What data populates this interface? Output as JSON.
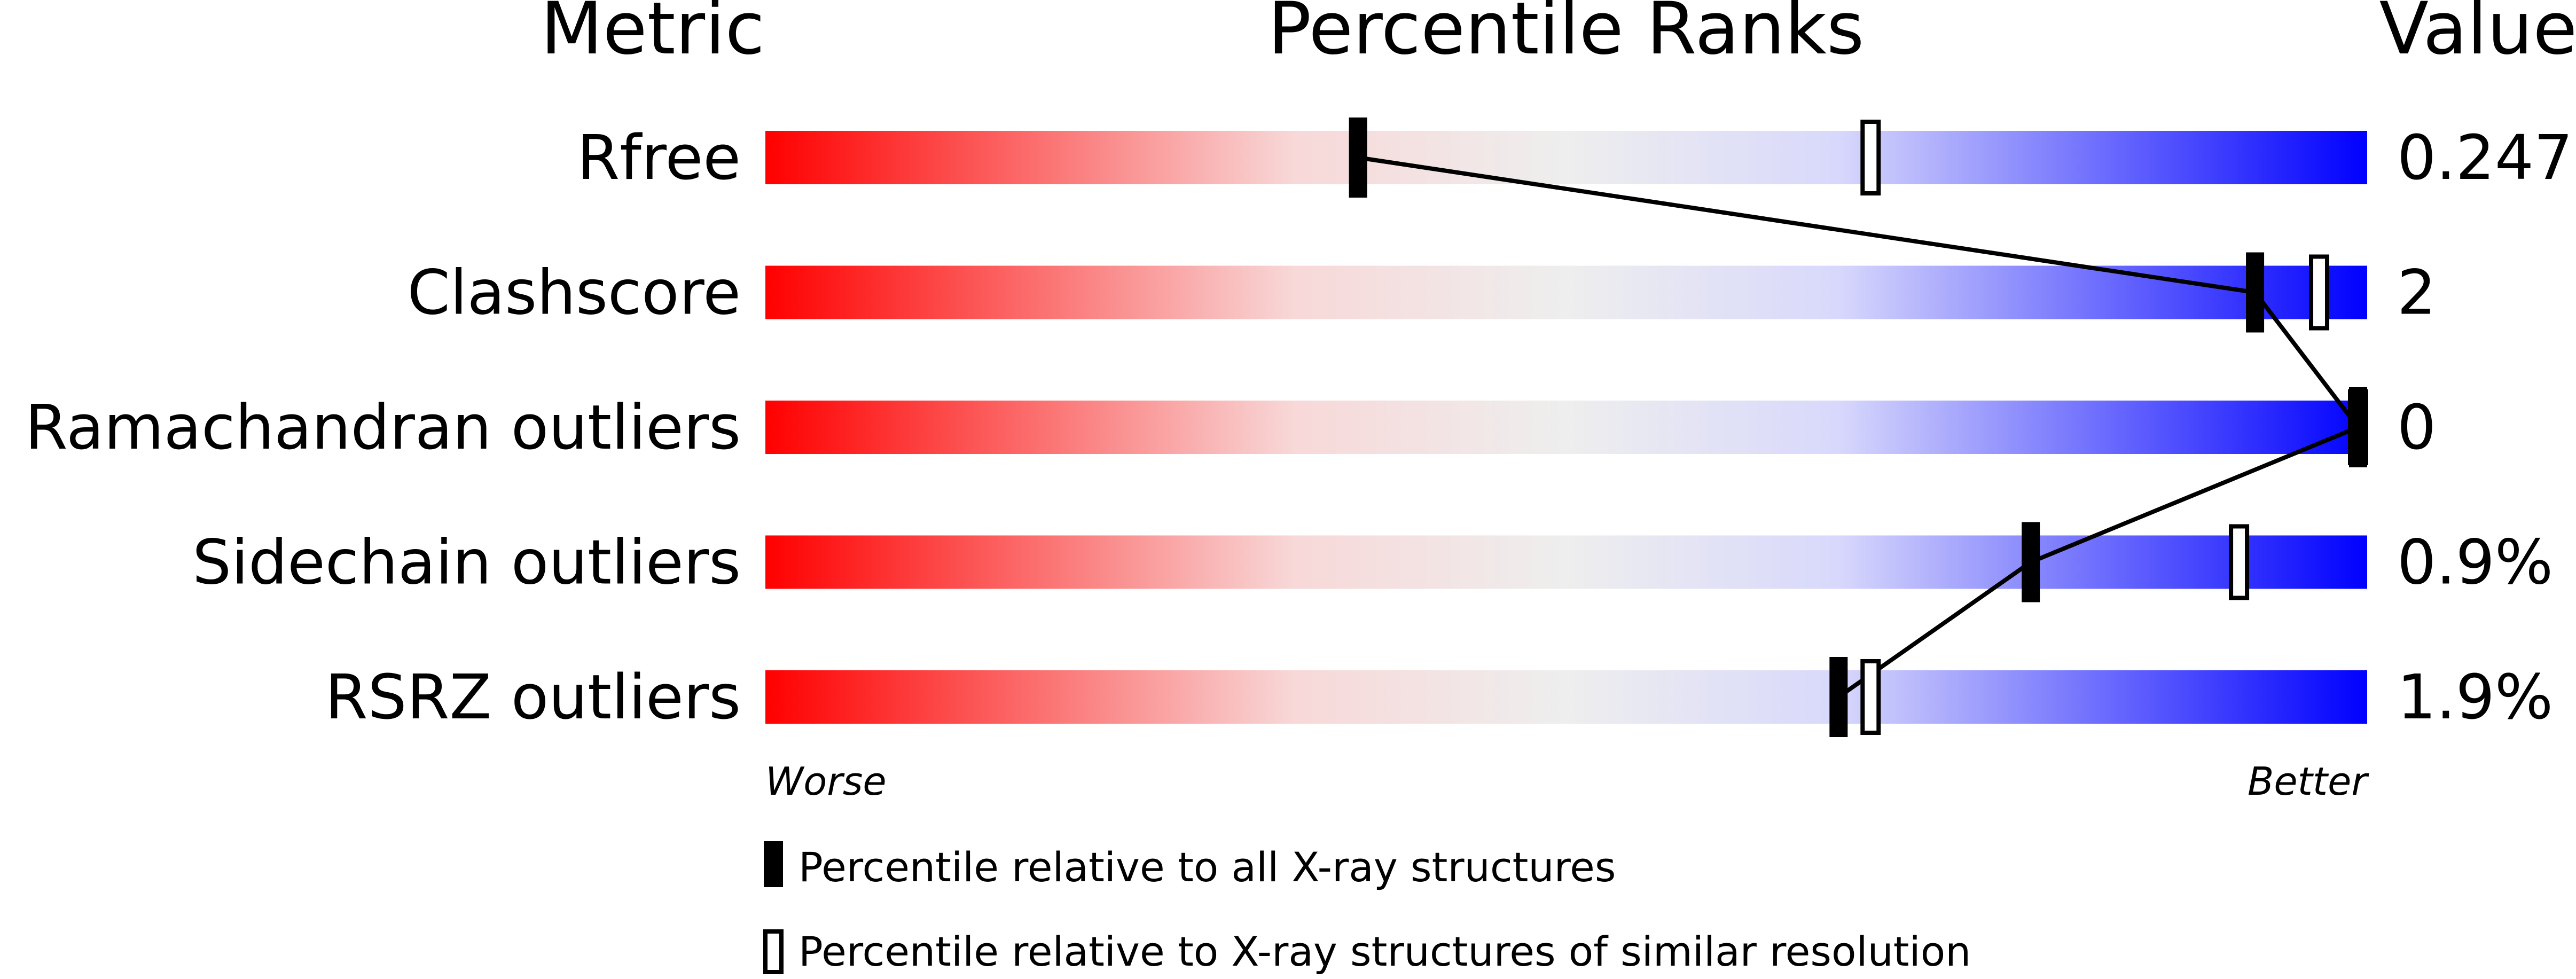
{
  "chart_data": {
    "type": "percentile-bar",
    "headers": {
      "metric": "Metric",
      "ranks": "Percentile Ranks",
      "value": "Value"
    },
    "xlim": [
      0,
      100
    ],
    "axis_labels": {
      "left": "Worse",
      "right": "Better"
    },
    "gradient_colors": [
      "#ff0000",
      "#f8d8d8",
      "#eeeeee",
      "#d8d8fc",
      "#0000ff"
    ],
    "metrics": [
      {
        "name": "Rfree",
        "value": "0.247",
        "percentile_all": 37,
        "percentile_similar": 69
      },
      {
        "name": "Clashscore",
        "value": "2",
        "percentile_all": 93,
        "percentile_similar": 97
      },
      {
        "name": "Ramachandran outliers",
        "value": "0",
        "percentile_all": 100,
        "percentile_similar": 100
      },
      {
        "name": "Sidechain outliers",
        "value": "0.9%",
        "percentile_all": 79,
        "percentile_similar": 92
      },
      {
        "name": "RSRZ outliers",
        "value": "1.9%",
        "percentile_all": 67,
        "percentile_similar": 69
      }
    ],
    "legend": [
      {
        "marker": "filled",
        "label": "Percentile relative to all X-ray structures"
      },
      {
        "marker": "open",
        "label": "Percentile relative to X-ray structures of similar resolution"
      }
    ]
  }
}
